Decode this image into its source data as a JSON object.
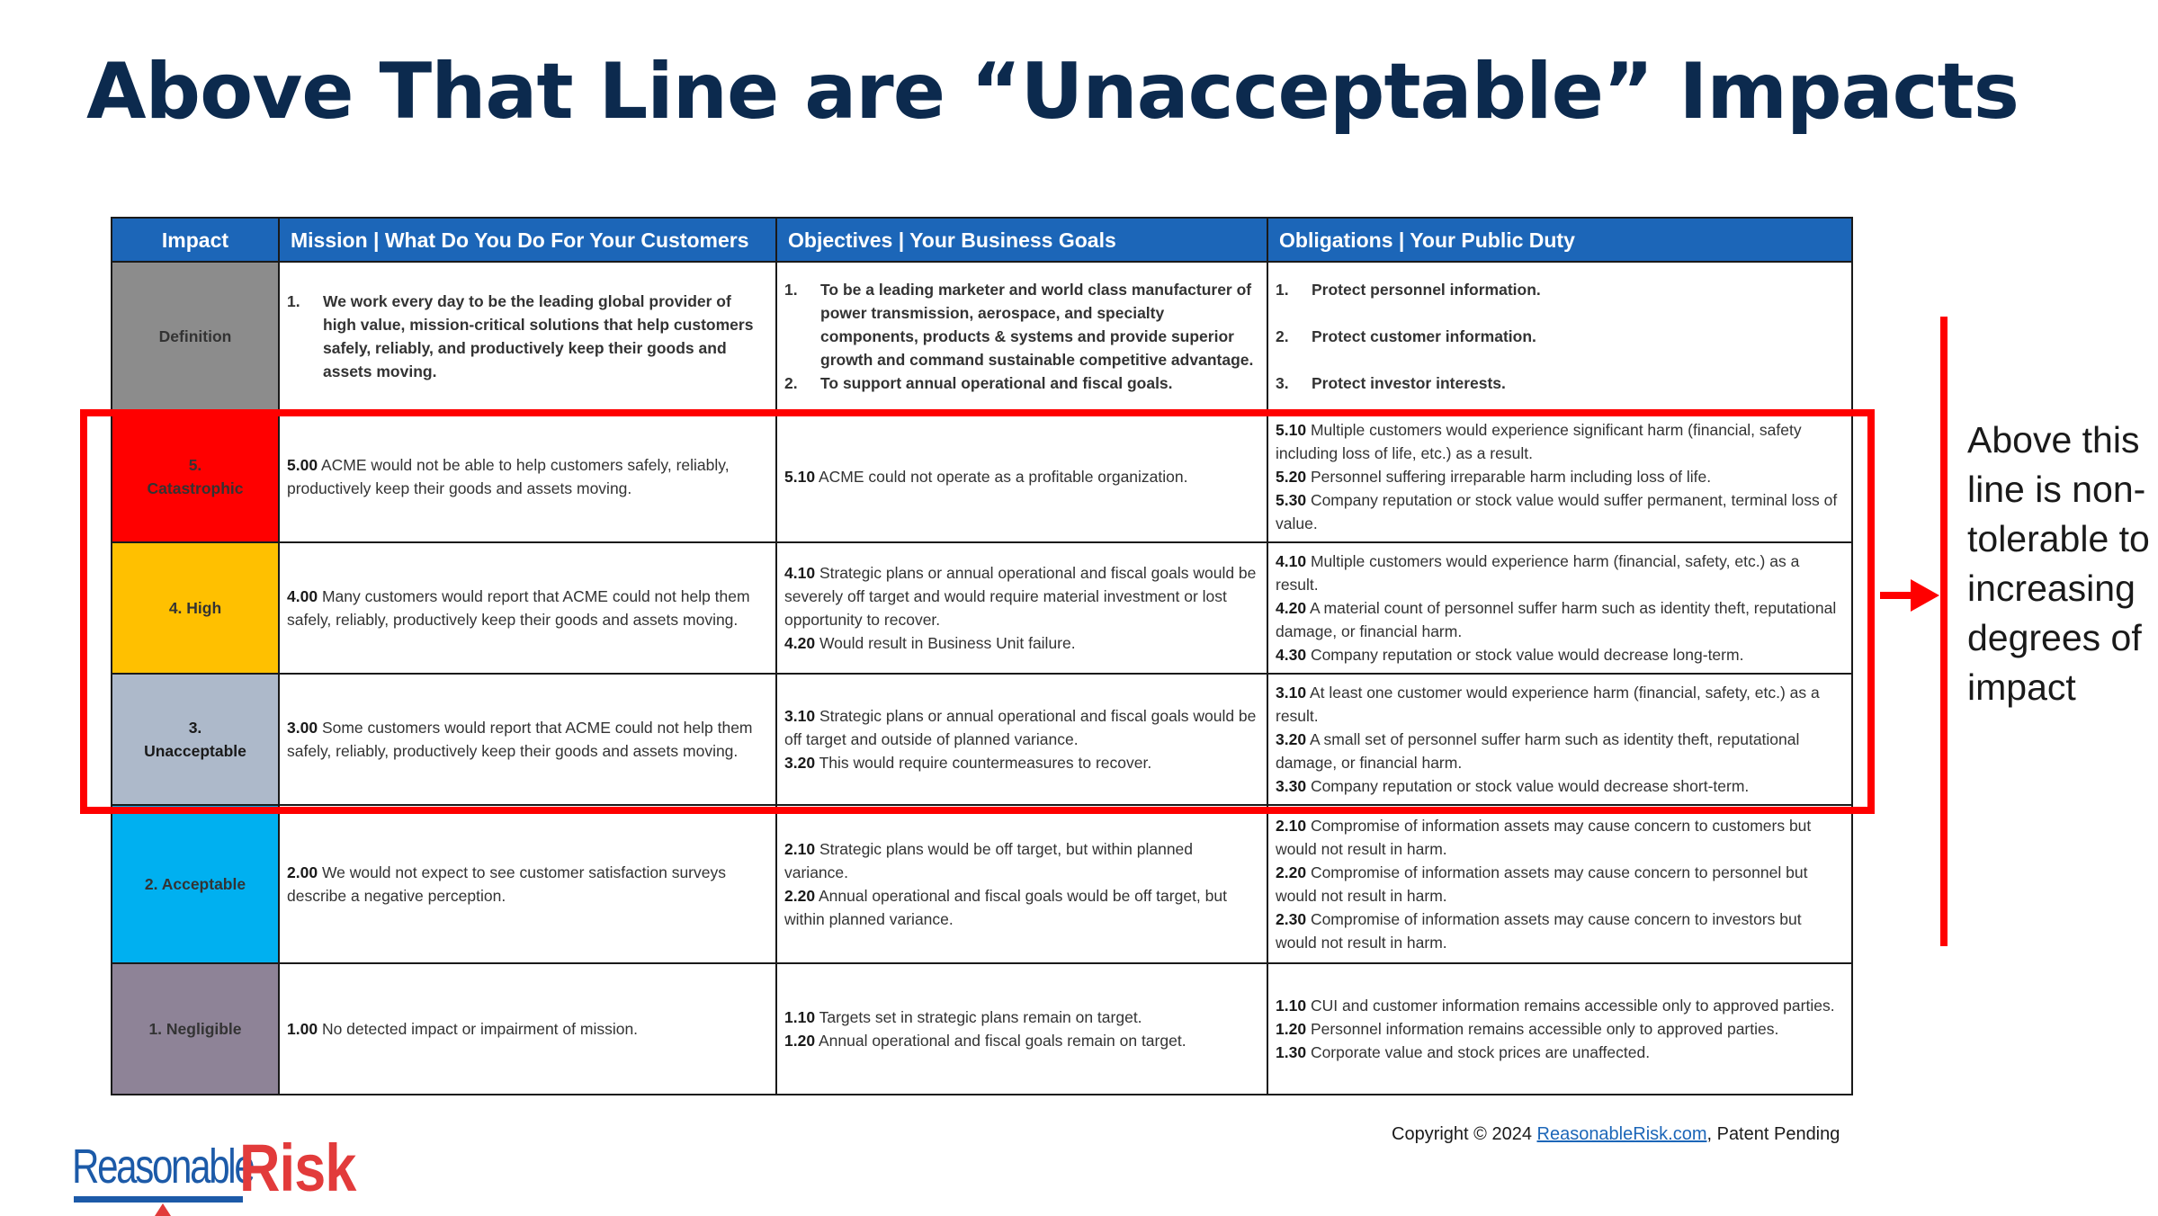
{
  "title": "Above That Line are “Unacceptable” Impacts",
  "table": {
    "headers": {
      "impact": "Impact",
      "mission": "Mission | What Do You Do For Your Customers",
      "objectives": "Objectives | Your Business Goals",
      "obligations": "Obligations | Your Public Duty"
    },
    "definition": {
      "label": "Definition",
      "mission": [
        {
          "num": "1.",
          "text": "We work every day to be the leading global provider of high value, mission-critical solutions that help customers safely, reliably, and productively keep their goods and assets moving."
        }
      ],
      "objectives": [
        {
          "num": "1.",
          "text": "To be a leading marketer and world class manufacturer of power transmission, aerospace, and specialty components, products & systems and provide superior growth and command sustainable competitive advantage."
        },
        {
          "num": "2.",
          "text": "To support annual operational and fiscal goals."
        }
      ],
      "obligations": [
        {
          "num": "1.",
          "text": "Protect personnel information."
        },
        {
          "num": "2.",
          "text": "Protect customer information."
        },
        {
          "num": "3.",
          "text": "Protect investor interests."
        }
      ]
    },
    "rows": [
      {
        "label_line1": "5.",
        "label_line2": "Catastrophic",
        "color": "#ff0000",
        "mission": [
          {
            "code": "5.00",
            "text": "ACME would not be able to help customers safely, reliably, productively keep their goods and assets moving."
          }
        ],
        "objectives": [
          {
            "code": "5.10",
            "text": "ACME could not operate as a profitable organization."
          }
        ],
        "obligations": [
          {
            "code": "5.10",
            "text": "Multiple customers would experience significant harm (financial, safety including loss of life, etc.) as a result."
          },
          {
            "code": "5.20",
            "text": "Personnel suffering irreparable harm including loss of life."
          },
          {
            "code": "5.30",
            "text": "Company reputation or stock value would suffer permanent, terminal loss of value."
          }
        ]
      },
      {
        "label_line1": "4. High",
        "label_line2": "",
        "color": "#ffc000",
        "mission": [
          {
            "code": "4.00",
            "text": "Many customers would report that ACME could not help them safely, reliably, productively keep their goods and assets moving."
          }
        ],
        "objectives": [
          {
            "code": "4.10",
            "text": "Strategic plans or annual operational and fiscal goals would be severely off target and would require material investment or lost opportunity to recover."
          },
          {
            "code": "4.20",
            "text": "Would result in Business Unit failure."
          }
        ],
        "obligations": [
          {
            "code": "4.10",
            "text": "Multiple customers would experience harm (financial, safety, etc.) as a result."
          },
          {
            "code": "4.20",
            "text": "A material count of personnel suffer harm such as identity theft, reputational damage, or financial harm."
          },
          {
            "code": "4.30",
            "text": "Company reputation or stock value would decrease long-term."
          }
        ]
      },
      {
        "label_line1": "3.",
        "label_line2": "Unacceptable",
        "color": "#adb9ca",
        "mission": [
          {
            "code": "3.00",
            "text": "Some customers would report that ACME could not help them safely, reliably, productively keep their goods and assets moving."
          }
        ],
        "objectives": [
          {
            "code": "3.10",
            "text": "Strategic plans or annual operational and fiscal goals would be off target and outside of planned variance."
          },
          {
            "code": "3.20",
            "text": "This would require countermeasures to recover."
          }
        ],
        "obligations": [
          {
            "code": "3.10",
            "text": "At least one customer would experience harm (financial, safety, etc.) as a result."
          },
          {
            "code": "3.20",
            "text": "A small set of personnel suffer harm such as identity theft, reputational damage, or financial harm."
          },
          {
            "code": "3.30",
            "text": "Company reputation or stock value would decrease short-term."
          }
        ]
      },
      {
        "label_line1": "2. Acceptable",
        "label_line2": "",
        "color": "#00b0f0",
        "mission": [
          {
            "code": "2.00",
            "text": "We would not expect to see customer satisfaction surveys describe a negative perception."
          }
        ],
        "objectives": [
          {
            "code": "2.10",
            "text": "Strategic plans would be off target, but within planned variance."
          },
          {
            "code": "2.20",
            "text": "Annual operational and fiscal goals would be off target, but within planned variance."
          }
        ],
        "obligations": [
          {
            "code": "2.10",
            "text": "Compromise of information assets may cause concern to customers but would not result in harm."
          },
          {
            "code": "2.20",
            "text": "Compromise of information assets may cause concern to personnel but would not result in harm."
          },
          {
            "code": "2.30",
            "text": "Compromise of information assets may cause concern to investors but would not result in harm."
          }
        ]
      },
      {
        "label_line1": "1. Negligible",
        "label_line2": "",
        "color": "#8e8397",
        "mission": [
          {
            "code": "1.00",
            "text": "No detected impact or impairment of mission."
          }
        ],
        "objectives": [
          {
            "code": "1.10",
            "text": "Targets set in strategic plans remain on target."
          },
          {
            "code": "1.20",
            "text": "Annual operational and fiscal goals remain on target."
          }
        ],
        "obligations": [
          {
            "code": "1.10",
            "text": "CUI and customer information remains accessible only to approved parties."
          },
          {
            "code": "1.20",
            "text": "Personnel information remains accessible only to approved parties."
          },
          {
            "code": "1.30",
            "text": "Corporate value and stock prices are unaffected."
          }
        ]
      }
    ]
  },
  "annotation": "Above this line is non-tolerable to increasing degrees of impact",
  "copyright": {
    "prefix": "Copyright © 2024 ",
    "link": "ReasonableRisk.com",
    "suffix": ", Patent Pending"
  },
  "logo": {
    "part1": "Reasonable",
    "part2": "Risk",
    "color_primary": "#1c5aa8",
    "color_accent": "#e23b3b"
  },
  "colors": {
    "title": "#0c2a4e",
    "header_bg": "#1c66b8",
    "definition_bg": "#8c8c8c",
    "highlight": "#ff0000"
  }
}
